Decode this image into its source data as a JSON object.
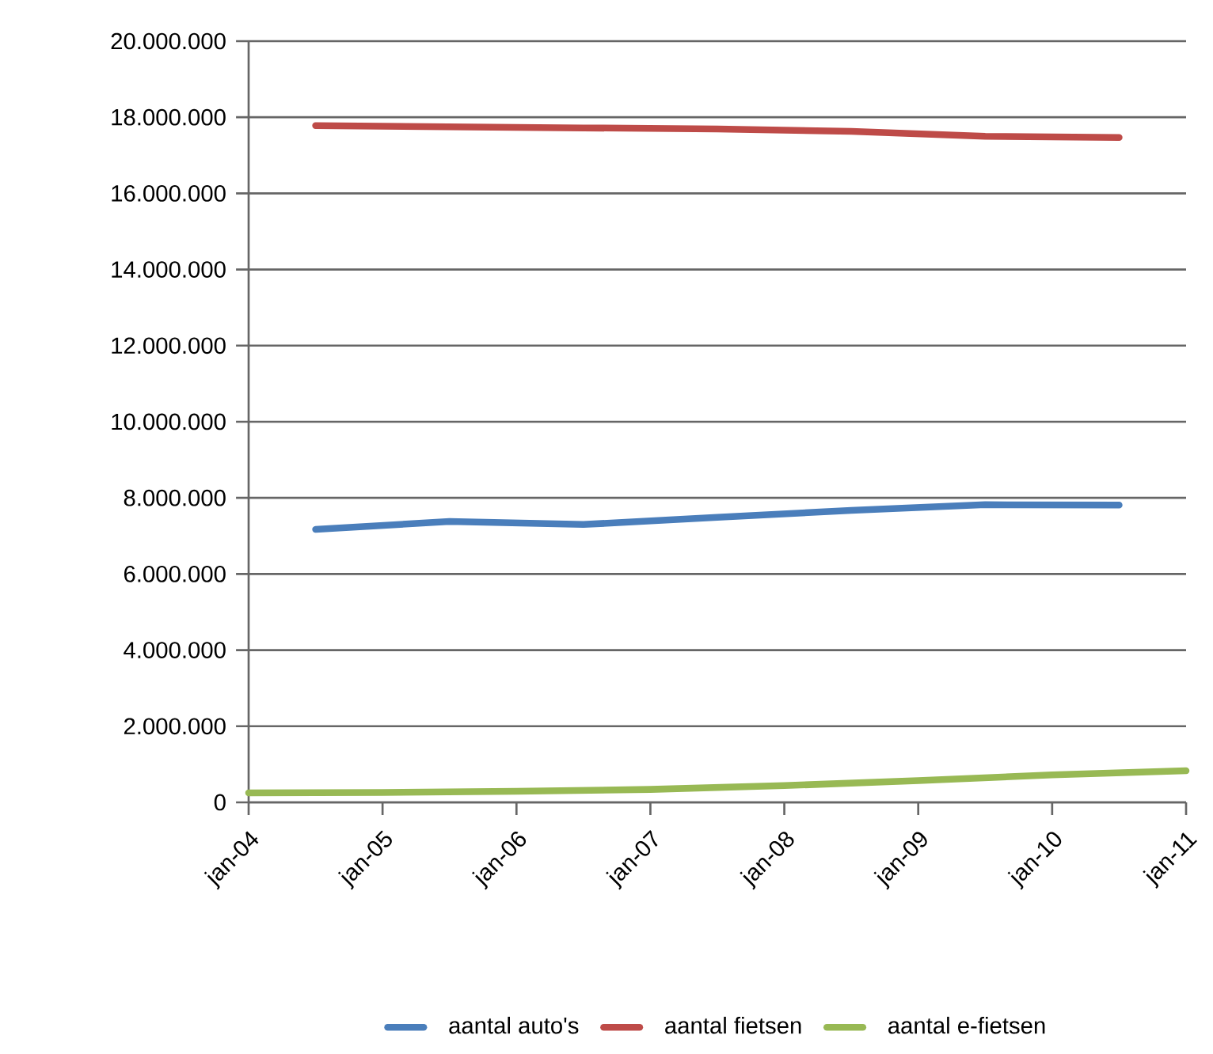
{
  "chart_data": {
    "type": "line",
    "ylim": [
      0,
      20000000
    ],
    "yticks": [
      0,
      {
        "value": 2000000,
        "label": "2.000.000"
      },
      {
        "value": 4000000,
        "label": "4.000.000"
      },
      {
        "value": 6000000,
        "label": "6.000.000"
      },
      {
        "value": 8000000,
        "label": "8.000.000"
      },
      {
        "value": 10000000,
        "label": "10.000.000"
      },
      {
        "value": 12000000,
        "label": "12.000.000"
      },
      {
        "value": 14000000,
        "label": "14.000.000"
      },
      {
        "value": 16000000,
        "label": "16.000.000"
      },
      {
        "value": 18000000,
        "label": "18.000.000"
      },
      {
        "value": 20000000,
        "label": "20.000.000"
      }
    ],
    "xlim": [
      "2004-01",
      "2011-01"
    ],
    "xticks": [
      {
        "value": "2004-01",
        "label": "jan-04"
      },
      {
        "value": "2005-01",
        "label": "jan-05"
      },
      {
        "value": "2006-01",
        "label": "jan-06"
      },
      {
        "value": "2007-01",
        "label": "jan-07"
      },
      {
        "value": "2008-01",
        "label": "jan-08"
      },
      {
        "value": "2009-01",
        "label": "jan-09"
      },
      {
        "value": "2010-01",
        "label": "jan-10"
      },
      {
        "value": "2011-01",
        "label": "jan-11"
      }
    ],
    "grid": "y",
    "legend": "bottom",
    "marker": "none",
    "line_style": "solid",
    "series": [
      {
        "name": "aantal auto's",
        "color": "#4a7ebb",
        "x": [
          "2004-07",
          "2005-07",
          "2006-07",
          "2007-07",
          "2008-07",
          "2009-07",
          "2010-07"
        ],
        "values": [
          7170000,
          7380000,
          7300000,
          7490000,
          7670000,
          7820000,
          7810000
        ]
      },
      {
        "name": "aantal fietsen",
        "color": "#be4b48",
        "x": [
          "2004-07",
          "2005-07",
          "2006-07",
          "2007-07",
          "2008-07",
          "2009-07",
          "2010-07"
        ],
        "values": [
          17780000,
          17750000,
          17720000,
          17690000,
          17630000,
          17500000,
          17470000
        ]
      },
      {
        "name": "aantal e-fietsen",
        "color": "#98b954",
        "x": [
          "2004-01",
          "2005-01",
          "2006-01",
          "2007-01",
          "2008-01",
          "2009-01",
          "2010-01",
          "2011-01"
        ],
        "values": [
          250000,
          260000,
          290000,
          340000,
          440000,
          570000,
          720000,
          830000
        ]
      }
    ]
  }
}
